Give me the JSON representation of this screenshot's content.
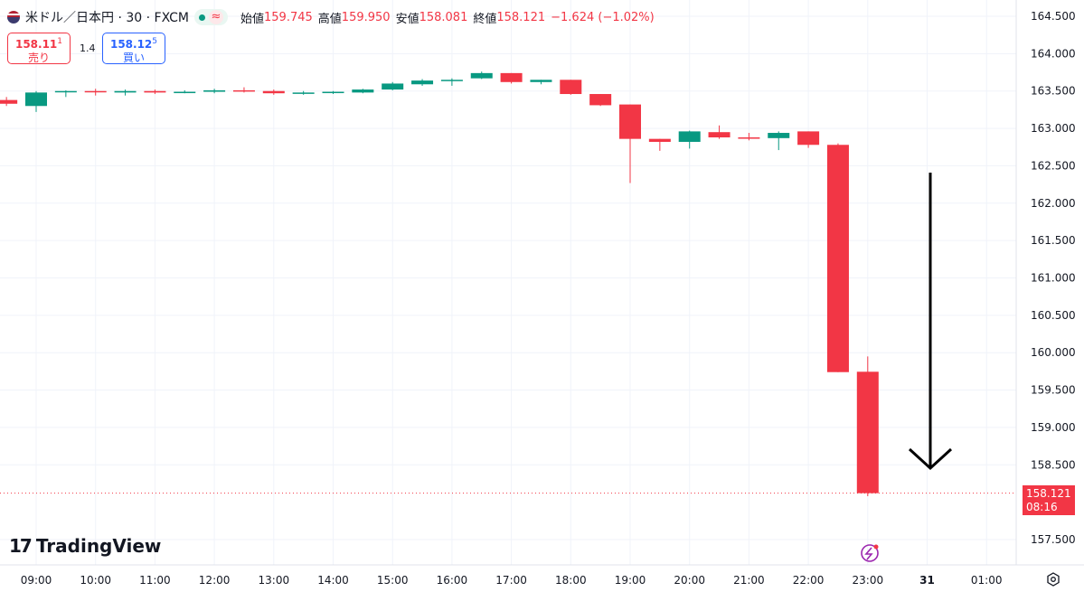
{
  "header": {
    "symbol": "米ドル／日本円 · 30 · FXCM",
    "open_label": "始値",
    "open": "159.745",
    "high_label": "高値",
    "high": "159.950",
    "low_label": "安値",
    "low": "158.081",
    "close_label": "終値",
    "close": "158.121",
    "change": "−1.624 (−1.02%)",
    "wave_icon": "≈"
  },
  "trade": {
    "sell_price": "158.11",
    "sell_pip": "1",
    "sell_label": "売り",
    "spread": "1.4",
    "buy_price": "158.12",
    "buy_pip": "5",
    "buy_label": "買い"
  },
  "last_price": {
    "value": "158.121",
    "countdown": "08:16"
  },
  "branding": {
    "logo_mark": "17",
    "name": "TradingView"
  },
  "colors": {
    "up": "#089981",
    "down": "#f23645",
    "grid": "#f0f3fa",
    "axis_text": "#131722",
    "annotation": "#000000"
  },
  "icons": {
    "settings": "gear-icon",
    "event": "lightning-icon"
  },
  "chart_data": {
    "type": "candlestick",
    "symbol": "USDJPY",
    "interval": "30",
    "x_axis_labels": [
      "09:00",
      "10:00",
      "11:00",
      "12:00",
      "13:00",
      "14:00",
      "15:00",
      "16:00",
      "17:00",
      "18:00",
      "19:00",
      "20:00",
      "21:00",
      "22:00",
      "23:00",
      "31",
      "01:00"
    ],
    "y_axis_labels": [
      "164.500",
      "164.000",
      "163.500",
      "163.000",
      "162.500",
      "162.000",
      "161.500",
      "161.000",
      "160.500",
      "160.000",
      "159.500",
      "159.000",
      "158.500",
      "157.500"
    ],
    "ylim": [
      157.3,
      164.7
    ],
    "grid": true,
    "candles": [
      {
        "time": "08:30",
        "open": 163.38,
        "high": 163.42,
        "low": 163.3,
        "close": 163.33
      },
      {
        "time": "09:00",
        "open": 163.3,
        "high": 163.5,
        "low": 163.22,
        "close": 163.48
      },
      {
        "time": "09:30",
        "open": 163.49,
        "high": 163.51,
        "low": 163.42,
        "close": 163.5
      },
      {
        "time": "10:00",
        "open": 163.5,
        "high": 163.53,
        "low": 163.44,
        "close": 163.49
      },
      {
        "time": "10:30",
        "open": 163.48,
        "high": 163.52,
        "low": 163.44,
        "close": 163.5
      },
      {
        "time": "11:00",
        "open": 163.5,
        "high": 163.52,
        "low": 163.46,
        "close": 163.48
      },
      {
        "time": "11:30",
        "open": 163.48,
        "high": 163.51,
        "low": 163.47,
        "close": 163.49
      },
      {
        "time": "12:00",
        "open": 163.49,
        "high": 163.53,
        "low": 163.47,
        "close": 163.51
      },
      {
        "time": "12:30",
        "open": 163.51,
        "high": 163.55,
        "low": 163.48,
        "close": 163.5
      },
      {
        "time": "13:00",
        "open": 163.5,
        "high": 163.52,
        "low": 163.45,
        "close": 163.47
      },
      {
        "time": "13:30",
        "open": 163.47,
        "high": 163.5,
        "low": 163.45,
        "close": 163.48
      },
      {
        "time": "14:00",
        "open": 163.48,
        "high": 163.5,
        "low": 163.46,
        "close": 163.49
      },
      {
        "time": "14:30",
        "open": 163.48,
        "high": 163.53,
        "low": 163.47,
        "close": 163.52
      },
      {
        "time": "15:00",
        "open": 163.52,
        "high": 163.62,
        "low": 163.51,
        "close": 163.6
      },
      {
        "time": "15:30",
        "open": 163.59,
        "high": 163.66,
        "low": 163.57,
        "close": 163.64
      },
      {
        "time": "16:00",
        "open": 163.64,
        "high": 163.67,
        "low": 163.57,
        "close": 163.65
      },
      {
        "time": "16:30",
        "open": 163.67,
        "high": 163.76,
        "low": 163.66,
        "close": 163.74
      },
      {
        "time": "17:00",
        "open": 163.74,
        "high": 163.74,
        "low": 163.6,
        "close": 163.62
      },
      {
        "time": "17:30",
        "open": 163.62,
        "high": 163.65,
        "low": 163.59,
        "close": 163.65
      },
      {
        "time": "18:00",
        "open": 163.65,
        "high": 163.65,
        "low": 163.45,
        "close": 163.46
      },
      {
        "time": "18:30",
        "open": 163.46,
        "high": 163.46,
        "low": 163.3,
        "close": 163.31
      },
      {
        "time": "19:00",
        "open": 163.32,
        "high": 163.32,
        "low": 162.27,
        "close": 162.86
      },
      {
        "time": "19:30",
        "open": 162.86,
        "high": 162.86,
        "low": 162.7,
        "close": 162.82
      },
      {
        "time": "20:00",
        "open": 162.82,
        "high": 162.97,
        "low": 162.73,
        "close": 162.96
      },
      {
        "time": "20:30",
        "open": 162.95,
        "high": 163.04,
        "low": 162.86,
        "close": 162.88
      },
      {
        "time": "21:00",
        "open": 162.88,
        "high": 162.94,
        "low": 162.84,
        "close": 162.87
      },
      {
        "time": "21:30",
        "open": 162.87,
        "high": 162.96,
        "low": 162.71,
        "close": 162.94
      },
      {
        "time": "22:00",
        "open": 162.96,
        "high": 162.96,
        "low": 162.74,
        "close": 162.78
      },
      {
        "time": "22:30",
        "open": 162.78,
        "high": 162.8,
        "low": 159.74,
        "close": 159.74
      },
      {
        "time": "23:00",
        "open": 159.745,
        "high": 159.95,
        "low": 158.081,
        "close": 158.121
      }
    ],
    "annotation": "down-arrow"
  }
}
